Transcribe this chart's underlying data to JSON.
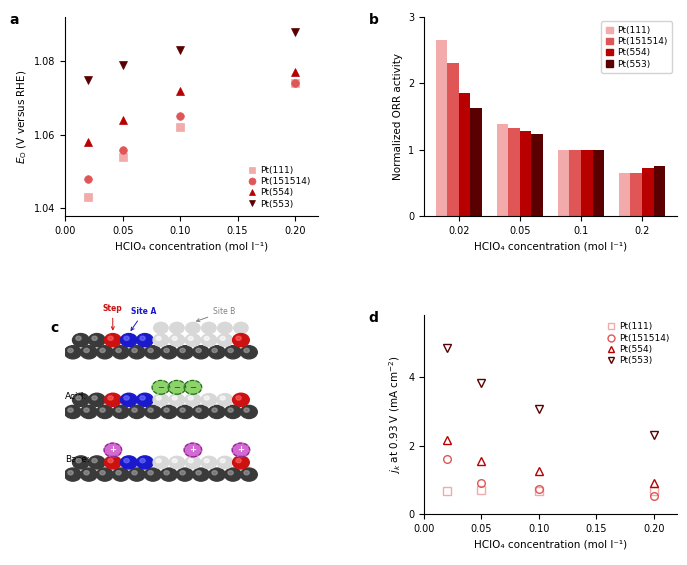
{
  "panel_a": {
    "title": "a",
    "xlabel": "HClO₄ concentration (mol l⁻¹)",
    "ylim": [
      1.038,
      1.092
    ],
    "yticks": [
      1.04,
      1.06,
      1.08
    ],
    "xlim": [
      0,
      0.22
    ],
    "xticks": [
      0,
      0.05,
      0.1,
      0.15,
      0.2
    ],
    "series": {
      "Pt(111)": {
        "x": [
          0.02,
          0.05,
          0.1,
          0.2
        ],
        "y": [
          1.043,
          1.054,
          1.062,
          1.074
        ],
        "color": "#f2aaaa",
        "marker": "s",
        "mfc": "#f2aaaa"
      },
      "Pt(151514)": {
        "x": [
          0.02,
          0.05,
          0.1,
          0.2
        ],
        "y": [
          1.048,
          1.056,
          1.065,
          1.074
        ],
        "color": "#e05555",
        "marker": "o",
        "mfc": "#e05555"
      },
      "Pt(554)": {
        "x": [
          0.02,
          0.05,
          0.1,
          0.2
        ],
        "y": [
          1.058,
          1.064,
          1.072,
          1.077
        ],
        "color": "#b80000",
        "marker": "^",
        "mfc": "#b80000"
      },
      "Pt(553)": {
        "x": [
          0.02,
          0.05,
          0.1,
          0.2
        ],
        "y": [
          1.075,
          1.079,
          1.083,
          1.088
        ],
        "color": "#5a0000",
        "marker": "v",
        "mfc": "#5a0000"
      }
    }
  },
  "panel_b": {
    "title": "b",
    "xlabel": "HClO₄ concentration (mol l⁻¹)",
    "ylabel": "Normalized ORR activity",
    "ylim": [
      0,
      3.0
    ],
    "yticks": [
      0,
      1,
      2,
      3
    ],
    "xgroups": [
      "0.02",
      "0.05",
      "0.1",
      "0.2"
    ],
    "series": {
      "Pt(111)": {
        "values": [
          2.65,
          1.38,
          1.0,
          0.65
        ],
        "color": "#f2aaaa"
      },
      "Pt(151514)": {
        "values": [
          2.3,
          1.33,
          0.99,
          0.65
        ],
        "color": "#e05555"
      },
      "Pt(554)": {
        "values": [
          1.85,
          1.28,
          0.99,
          0.72
        ],
        "color": "#b80000"
      },
      "Pt(553)": {
        "values": [
          1.62,
          1.24,
          1.0,
          0.75
        ],
        "color": "#5a0000"
      }
    }
  },
  "panel_d": {
    "title": "d",
    "xlabel": "HClO₄ concentration (mol l⁻¹)",
    "ylim": [
      0,
      5.8
    ],
    "yticks": [
      0,
      2,
      4
    ],
    "xlim": [
      0,
      0.22
    ],
    "xticks": [
      0,
      0.05,
      0.1,
      0.15,
      0.2
    ],
    "series": {
      "Pt(111)": {
        "x": [
          0.02,
          0.05,
          0.1,
          0.2
        ],
        "y": [
          0.68,
          0.7,
          0.68,
          0.68
        ],
        "color": "#f2aaaa",
        "marker": "s"
      },
      "Pt(151514)": {
        "x": [
          0.02,
          0.05,
          0.1,
          0.2
        ],
        "y": [
          1.62,
          0.9,
          0.72,
          0.52
        ],
        "color": "#e05555",
        "marker": "o"
      },
      "Pt(554)": {
        "x": [
          0.02,
          0.05,
          0.1,
          0.2
        ],
        "y": [
          2.15,
          1.55,
          1.25,
          0.9
        ],
        "color": "#b80000",
        "marker": "^"
      },
      "Pt(553)": {
        "x": [
          0.02,
          0.05,
          0.1,
          0.2
        ],
        "y": [
          4.85,
          3.82,
          3.08,
          2.3
        ],
        "color": "#5a0000",
        "marker": "v"
      }
    }
  }
}
